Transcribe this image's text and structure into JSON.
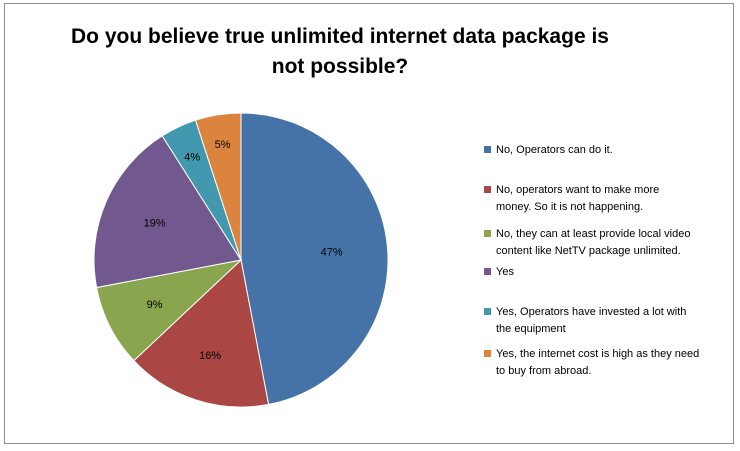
{
  "chart_data": {
    "type": "pie",
    "title_lines": [
      "Do you believe true unlimited internet data package is",
      "not possible?"
    ],
    "labels": [
      "No, Operators can do it.",
      "No, operators want to make more money. So it is not happening.",
      "No, they can at least provide local video content like NetTV package unlimited.",
      "Yes",
      "Yes, Operators have invested a lot with the equipment",
      "Yes, the internet cost is high as they need to buy from abroad."
    ],
    "legend_lines": [
      [
        "No, Operators can do it."
      ],
      [
        "No, operators want to make more",
        "money. So it is not happening."
      ],
      [
        "No, they can at least provide local video",
        "content like NetTV package unlimited."
      ],
      [
        "Yes"
      ],
      [
        "Yes, Operators have invested a lot with",
        "the equipment"
      ],
      [
        "Yes, the internet cost is high as they need",
        "to buy from abroad."
      ]
    ],
    "values": [
      47,
      16,
      9,
      19,
      4,
      5
    ],
    "data_labels": [
      "47%",
      "16%",
      "9%",
      "19%",
      "4%",
      "5%"
    ],
    "colors": [
      "#4572a7",
      "#aa4643",
      "#89a54e",
      "#71588f",
      "#4198af",
      "#db843d"
    ],
    "start": "12 o'clock",
    "direction": "clockwise",
    "legend_position": "right"
  }
}
